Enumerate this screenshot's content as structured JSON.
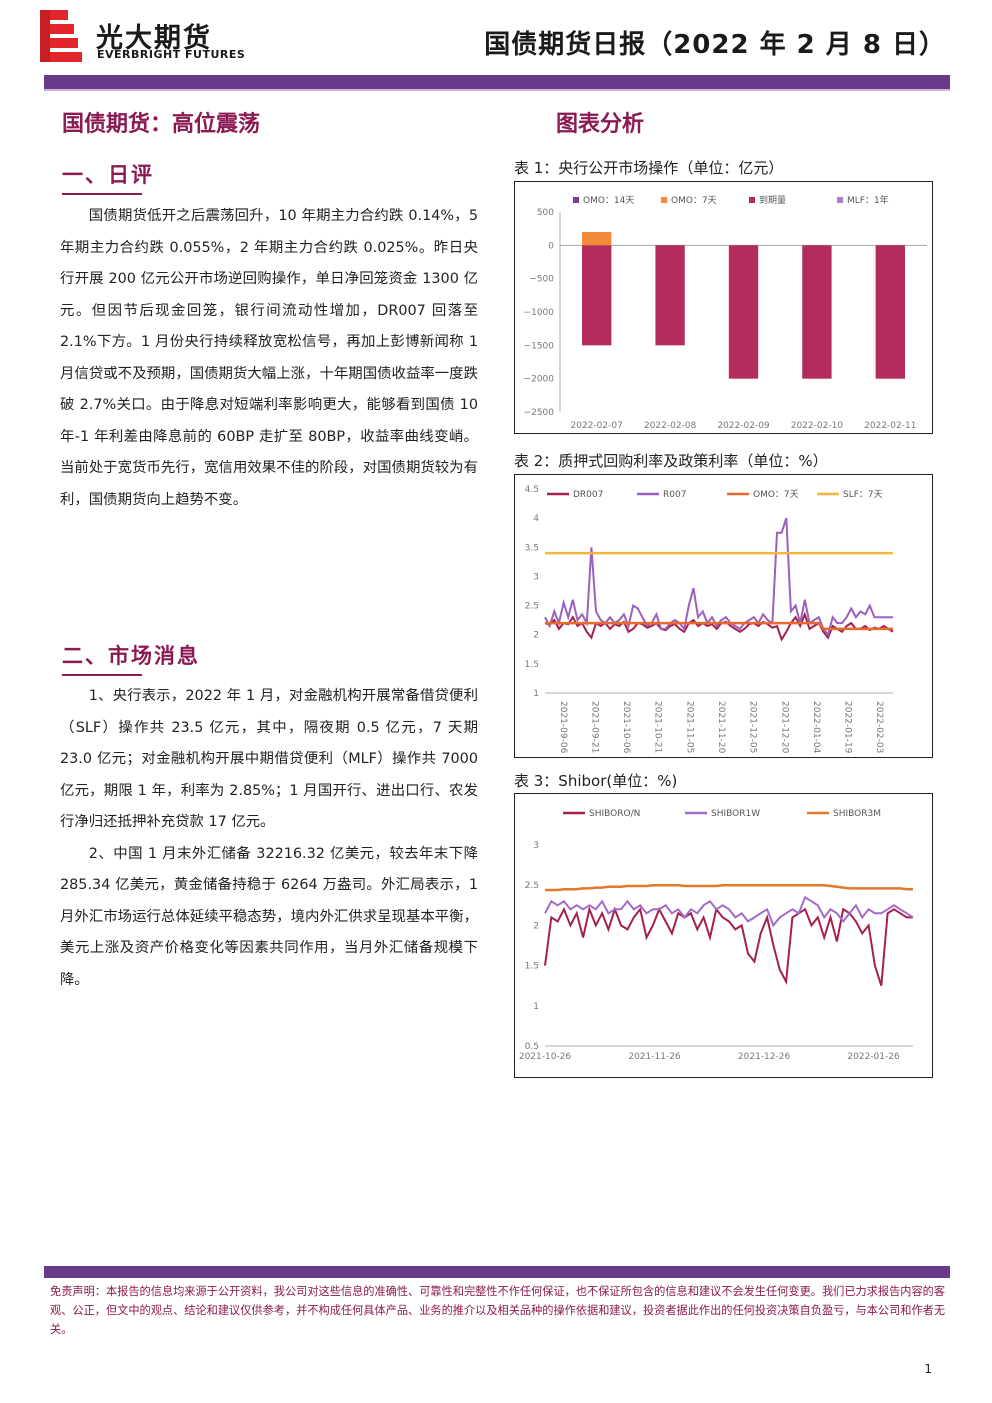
{
  "header": {
    "logo_cn": "光大期货",
    "logo_en": "EVERBRIGHT FUTURES",
    "report_title": "国债期货日报（2022 年 2 月 8 日）",
    "colors": {
      "brand": "#6a3a8a",
      "accent": "#8b1a52",
      "logo_red": "#e0262b"
    }
  },
  "left": {
    "headline": "国债期货：高位震荡",
    "section1_title": "一、日评",
    "section1_text": "国债期货低开之后震荡回升，10 年期主力合约跌 0.14%，5 年期主力合约跌 0.055%，2 年期主力合约跌 0.025%。昨日央行开展 200 亿元公开市场逆回购操作，单日净回笼资金 1300 亿元。但因节后现金回笼，银行间流动性增加，DR007 回落至 2.1%下方。1 月份央行持续释放宽松信号，再加上彭博新闻称 1 月信贷或不及预期，国债期货大幅上涨，十年期国债收益率一度跌破 2.7%关口。由于降息对短端利率影响更大，能够看到国债 10 年-1 年利差由降息前的 60BP 走扩至 80BP，收益率曲线变峭。当前处于宽货币先行，宽信用效果不佳的阶段，对国债期货较为有利，国债期货向上趋势不变。",
    "section2_title": "二、市场消息",
    "news1": "1、央行表示，2022 年 1 月，对金融机构开展常备借贷便利（SLF）操作共 23.5 亿元，其中，隔夜期 0.5 亿元，7 天期 23.0 亿元；对金融机构开展中期借贷便利（MLF）操作共 7000 亿元，期限 1 年，利率为 2.85%；1 月国开行、进出口行、农发行净归还抵押补充贷款 17 亿元。",
    "news2": "2、中国 1 月末外汇储备 32216.32 亿美元，较去年末下降 285.34 亿美元，黄金储备持稳于 6264 万盎司。外汇局表示，1 月外汇市场运行总体延续平稳态势，境内外汇供求呈现基本平衡，美元上涨及资产价格变化等因素共同作用，当月外汇储备规模下降。"
  },
  "right": {
    "section_title": "图表分析",
    "chart1_caption": "表 1：央行公开市场操作（单位：亿元）",
    "chart2_caption": "表 2：质押式回购利率及政策利率（单位：%）",
    "chart3_caption": "表 3：Shibor(单位：%)"
  },
  "chart_data": [
    {
      "type": "bar",
      "categories": [
        "2022-02-07",
        "2022-02-08",
        "2022-02-09",
        "2022-02-10",
        "2022-02-11"
      ],
      "series": [
        {
          "name": "OMO：14天",
          "values": [
            0,
            0,
            0,
            0,
            0
          ],
          "color": "#7b3f8c"
        },
        {
          "name": "OMO：7天",
          "values": [
            200,
            0,
            0,
            0,
            0
          ],
          "color": "#f28a3a"
        },
        {
          "name": "到期量",
          "values": [
            -1500,
            -1500,
            -2000,
            -2000,
            -2000
          ],
          "color": "#b22c5e"
        },
        {
          "name": "MLF：1年",
          "values": [
            0,
            0,
            0,
            0,
            0
          ],
          "color": "#b07ad0"
        }
      ],
      "yticks": [
        "500",
        "0",
        "−500",
        "−1000",
        "−1500",
        "−2000",
        "−2500"
      ],
      "ylim": [
        -2500,
        500
      ],
      "grid": false,
      "legend": "top"
    },
    {
      "type": "line",
      "xticks": [
        "2021-09-06",
        "2021-09-21",
        "2021-10-06",
        "2021-10-21",
        "2021-11-05",
        "2021-11-20",
        "2021-12-05",
        "2021-12-20",
        "2022-01-04",
        "2022-01-19",
        "2022-02-03"
      ],
      "yticks": [
        "4.5",
        "4",
        "3.5",
        "3",
        "2.5",
        "2",
        "1.5",
        "1"
      ],
      "ylim": [
        1,
        4.5
      ],
      "series": [
        {
          "name": "DR007",
          "color": "#a3204f",
          "values": [
            2.2,
            2.17,
            2.25,
            2.1,
            2.2,
            2.18,
            2.3,
            2.15,
            2.2,
            2.05,
            1.95,
            2.2,
            2.15,
            2.2,
            2.1,
            2.18,
            2.15,
            2.22,
            2.05,
            2.1,
            2.2,
            2.18,
            2.12,
            2.15,
            2.2,
            2.1,
            2.08,
            2.15,
            2.18,
            2.1,
            2.05,
            2.2,
            2.25,
            2.15,
            2.2,
            2.15,
            2.18,
            2.1,
            2.2,
            2.22,
            2.15,
            2.1,
            2.05,
            2.1,
            2.18,
            2.2,
            2.15,
            2.22,
            2.18,
            2.12,
            2.15,
            1.92,
            2.05,
            2.2,
            2.3,
            2.15,
            2.35,
            2.1,
            2.15,
            2.2,
            2.05,
            1.95,
            2.15,
            2.1,
            2.05,
            2.15,
            2.2,
            2.1,
            2.1,
            2.15,
            2.08,
            2.12,
            2.1,
            2.15,
            2.1,
            2.05
          ]
        },
        {
          "name": "R007",
          "color": "#9b5fc0",
          "values": [
            2.3,
            2.15,
            2.4,
            2.2,
            2.55,
            2.3,
            2.6,
            2.25,
            2.35,
            2.2,
            3.5,
            2.4,
            2.25,
            2.2,
            2.3,
            2.2,
            2.25,
            2.35,
            2.15,
            2.5,
            2.45,
            2.3,
            2.15,
            2.2,
            2.35,
            2.1,
            2.1,
            2.2,
            2.25,
            2.2,
            2.1,
            2.5,
            2.8,
            2.3,
            2.4,
            2.2,
            2.3,
            2.15,
            2.25,
            2.3,
            2.2,
            2.15,
            2.1,
            2.2,
            2.25,
            2.3,
            2.2,
            2.35,
            2.25,
            2.2,
            3.75,
            3.75,
            4.0,
            2.4,
            2.5,
            2.2,
            2.6,
            2.2,
            2.25,
            2.3,
            2.1,
            2.0,
            2.3,
            2.2,
            2.2,
            2.3,
            2.45,
            2.3,
            2.4,
            2.35,
            2.5,
            2.3,
            2.3,
            2.3,
            2.3,
            2.3
          ]
        },
        {
          "name": "OMO：7天",
          "color": "#e8692a",
          "values": [
            2.2,
            2.2,
            2.2,
            2.2,
            2.2,
            2.2,
            2.2,
            2.2,
            2.2,
            2.2,
            2.2,
            2.2,
            2.2,
            2.2,
            2.2,
            2.2,
            2.2,
            2.2,
            2.2,
            2.2,
            2.2,
            2.2,
            2.2,
            2.2,
            2.2,
            2.2,
            2.2,
            2.2,
            2.2,
            2.2,
            2.2,
            2.2,
            2.2,
            2.2,
            2.2,
            2.2,
            2.2,
            2.2,
            2.2,
            2.2,
            2.2,
            2.2,
            2.2,
            2.2,
            2.2,
            2.2,
            2.2,
            2.2,
            2.2,
            2.2,
            2.2,
            2.2,
            2.2,
            2.2,
            2.2,
            2.2,
            2.2,
            2.2,
            2.2,
            2.2,
            2.1,
            2.1,
            2.1,
            2.1,
            2.1,
            2.1,
            2.1,
            2.1,
            2.1,
            2.1,
            2.1,
            2.1,
            2.1,
            2.1,
            2.1,
            2.1
          ]
        },
        {
          "name": "SLF：7天",
          "color": "#f2b540",
          "values": [
            3.4,
            3.4,
            3.4,
            3.4,
            3.4,
            3.4,
            3.4,
            3.4,
            3.4,
            3.4,
            3.4,
            3.4,
            3.4,
            3.4,
            3.4,
            3.4,
            3.4,
            3.4,
            3.4,
            3.4,
            3.4,
            3.4,
            3.4,
            3.4,
            3.4,
            3.4,
            3.4,
            3.4,
            3.4,
            3.4,
            3.4,
            3.4,
            3.4,
            3.4,
            3.4,
            3.4,
            3.4,
            3.4,
            3.4,
            3.4,
            3.4,
            3.4,
            3.4,
            3.4,
            3.4,
            3.4,
            3.4,
            3.4,
            3.4,
            3.4,
            3.4,
            3.4,
            3.4,
            3.4,
            3.4,
            3.4,
            3.4,
            3.4,
            3.4,
            3.4,
            3.4,
            3.4,
            3.4,
            3.4,
            3.4,
            3.4,
            3.4,
            3.4,
            3.4,
            3.4,
            3.4,
            3.4,
            3.4,
            3.4,
            3.4,
            3.4
          ]
        }
      ],
      "grid": false,
      "legend": "top"
    },
    {
      "type": "line",
      "xticks": [
        "2021-10-26",
        "2021-11-26",
        "2021-12-26",
        "2022-01-26"
      ],
      "yticks": [
        "3",
        "2.5",
        "2",
        "1.5",
        "1",
        "0.5"
      ],
      "ylim": [
        0.5,
        3
      ],
      "series": [
        {
          "name": "SHIBORO/N",
          "color": "#a3204f",
          "values": [
            1.5,
            2.1,
            2.05,
            2.2,
            2.0,
            2.15,
            1.85,
            2.2,
            2.0,
            2.15,
            1.95,
            2.2,
            2.0,
            1.95,
            2.1,
            2.2,
            1.85,
            2.0,
            2.2,
            2.05,
            1.9,
            2.15,
            2.1,
            2.15,
            1.95,
            2.1,
            1.85,
            2.2,
            2.1,
            2.05,
            1.95,
            2.0,
            1.65,
            1.55,
            1.9,
            2.1,
            1.75,
            1.45,
            1.3,
            2.1,
            2.15,
            2.2,
            2.0,
            2.1,
            1.85,
            2.1,
            1.8,
            2.2,
            2.15,
            2.05,
            1.9,
            2.0,
            1.5,
            1.25,
            2.15,
            2.2,
            2.15,
            2.1,
            2.1
          ]
        },
        {
          "name": "SHIBOR1W",
          "color": "#a36ac8",
          "values": [
            2.15,
            2.3,
            2.25,
            2.3,
            2.2,
            2.25,
            2.2,
            2.25,
            2.2,
            2.3,
            2.15,
            2.2,
            2.2,
            2.3,
            2.2,
            2.25,
            2.15,
            2.2,
            2.2,
            2.25,
            2.15,
            2.2,
            2.1,
            2.2,
            2.15,
            2.25,
            2.3,
            2.2,
            2.25,
            2.2,
            2.1,
            2.15,
            2.05,
            2.1,
            2.15,
            2.2,
            2.0,
            2.1,
            2.15,
            2.2,
            2.15,
            2.35,
            2.3,
            2.25,
            2.1,
            2.2,
            2.15,
            2.05,
            2.15,
            2.25,
            2.1,
            2.2,
            2.15,
            2.15,
            2.2,
            2.25,
            2.2,
            2.15,
            2.1
          ]
        },
        {
          "name": "SHIBOR3M",
          "color": "#e07a2a",
          "values": [
            2.44,
            2.44,
            2.44,
            2.45,
            2.45,
            2.45,
            2.46,
            2.46,
            2.47,
            2.47,
            2.48,
            2.48,
            2.48,
            2.49,
            2.49,
            2.49,
            2.49,
            2.5,
            2.5,
            2.5,
            2.5,
            2.5,
            2.49,
            2.49,
            2.49,
            2.49,
            2.49,
            2.49,
            2.5,
            2.5,
            2.5,
            2.5,
            2.5,
            2.5,
            2.5,
            2.5,
            2.5,
            2.5,
            2.5,
            2.5,
            2.5,
            2.5,
            2.5,
            2.5,
            2.5,
            2.49,
            2.48,
            2.47,
            2.46,
            2.46,
            2.46,
            2.46,
            2.46,
            2.46,
            2.46,
            2.46,
            2.46,
            2.45,
            2.45
          ]
        }
      ],
      "grid": false,
      "legend": "top"
    }
  ],
  "footer": {
    "disclaimer": "免责声明：本报告的信息均来源于公开资料，我公司对这些信息的准确性、可靠性和完整性不作任何保证，也不保证所包含的信息和建议不会发生任何变更。我们已力求报告内容的客观、公正，但文中的观点、结论和建议仅供参考，并不构成任何具体产品、业务的推介以及相关品种的操作依据和建议，投资者据此作出的任何投资决策自负盈亏，与本公司和作者无关。",
    "page_number": "1"
  }
}
